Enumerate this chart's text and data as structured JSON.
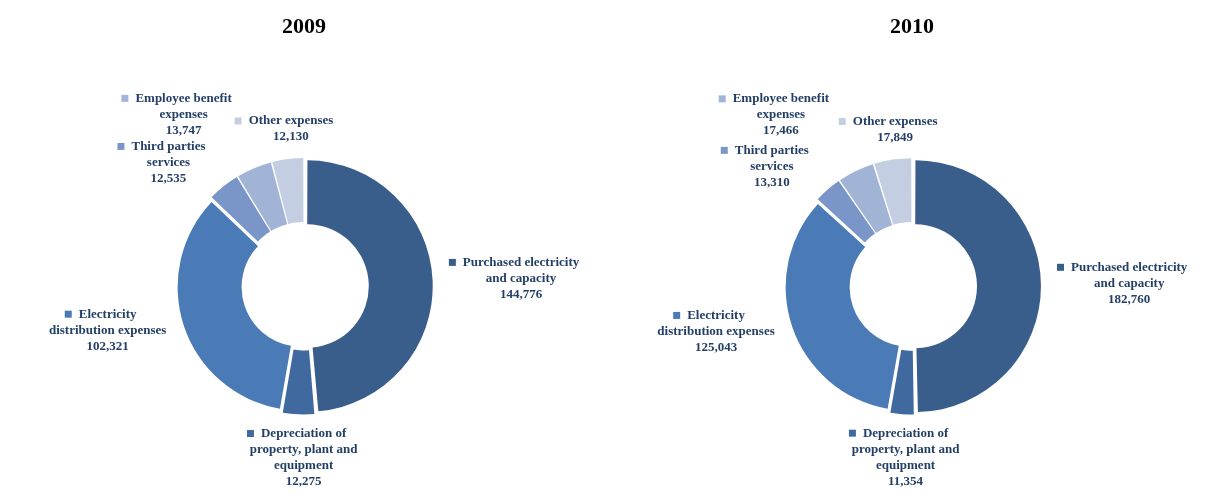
{
  "chart_data": [
    {
      "type": "donut",
      "title": "2009",
      "categories": [
        "Purchased electricity and capacity",
        "Depreciation of property, plant and equipment",
        "Electricity distribution expenses",
        "Third parties services",
        "Employee benefit expenses",
        "Other expenses"
      ],
      "values": [
        144776,
        12275,
        102321,
        12535,
        13747,
        12130
      ],
      "value_labels": [
        "144,776",
        "12,275",
        "102,321",
        "12,535",
        "13,747",
        "12,130"
      ],
      "legend": true,
      "colors": [
        "#3a5e8c",
        "#40699f",
        "#4a7bb7",
        "#7a96c8",
        "#a2b4d6",
        "#c4cee3"
      ]
    },
    {
      "type": "donut",
      "title": "2010",
      "categories": [
        "Purchased electricity and capacity",
        "Depreciation of property, plant and equipment",
        "Electricity distribution expenses",
        "Third parties services",
        "Employee benefit expenses",
        "Other expenses"
      ],
      "values": [
        182760,
        11354,
        125043,
        13310,
        17466,
        17849
      ],
      "value_labels": [
        "182,760",
        "11,354",
        "125,043",
        "13,310",
        "17,466",
        "17,849"
      ],
      "legend": true,
      "colors": [
        "#3a5e8c",
        "#40699f",
        "#4a7bb7",
        "#7a96c8",
        "#a2b4d6",
        "#c4cee3"
      ]
    }
  ]
}
